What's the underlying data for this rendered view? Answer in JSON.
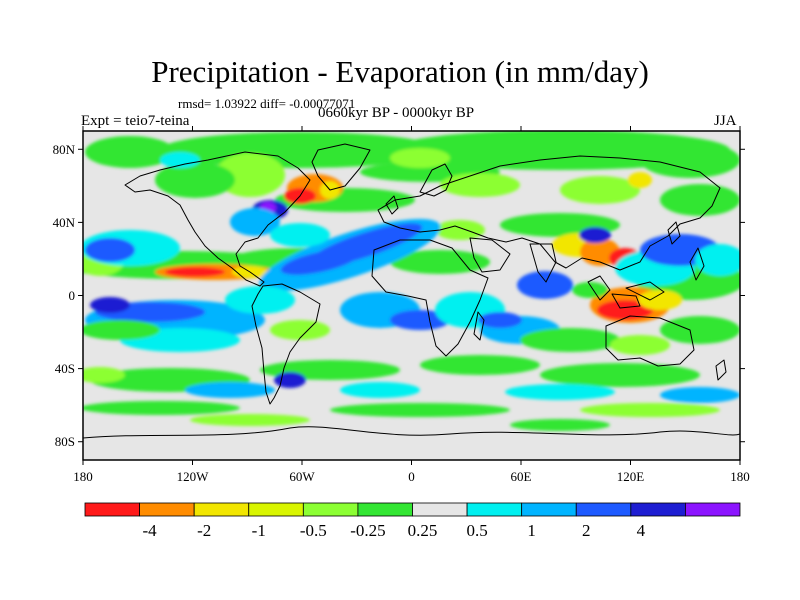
{
  "title": "Precipitation - Evaporation (in mm/day)",
  "stats": "rmsd= 1.03922 diff= -0.00077071",
  "period": "0660kyr BP - 0000kyr BP",
  "experiment": "Expt = teio7-teina",
  "season": "JJA",
  "map": {
    "lon_range": [
      -180,
      180
    ],
    "lat_range": [
      -90,
      90
    ],
    "lon_ticks": [
      {
        "value": -180,
        "label": "180"
      },
      {
        "value": -120,
        "label": "120W"
      },
      {
        "value": -60,
        "label": "60W"
      },
      {
        "value": 0,
        "label": "0"
      },
      {
        "value": 60,
        "label": "60E"
      },
      {
        "value": 120,
        "label": "120E"
      },
      {
        "value": 180,
        "label": "180"
      }
    ],
    "lat_ticks": [
      {
        "value": 80,
        "label": "80N"
      },
      {
        "value": 40,
        "label": "40N"
      },
      {
        "value": 0,
        "label": "0"
      },
      {
        "value": -40,
        "label": "40S"
      },
      {
        "value": -80,
        "label": "80S"
      }
    ],
    "background_color": "#e6e6e6",
    "coastline_color": "#000000"
  },
  "colorbar": {
    "colors": [
      "#ff1a1a",
      "#ff8c00",
      "#f2e600",
      "#d9f500",
      "#8cff33",
      "#33e633",
      "#e6e6e6",
      "#00f0f0",
      "#00b4ff",
      "#1e5aff",
      "#1e1ed2",
      "#8c14ff"
    ],
    "labels": [
      "-4",
      "-2",
      "-1",
      "-0.5",
      "-0.25",
      "0.25",
      "0.5",
      "1",
      "2",
      "4"
    ]
  }
}
